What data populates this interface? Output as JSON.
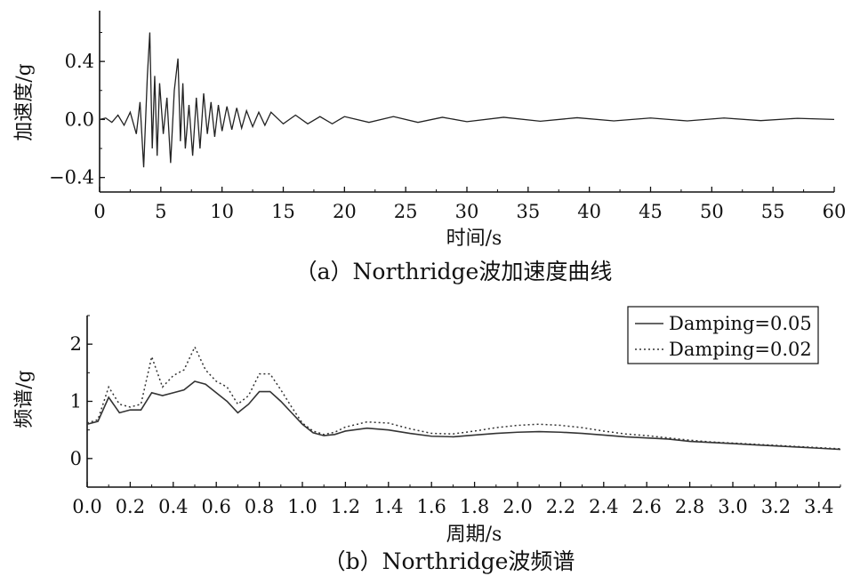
{
  "chart_data": [
    {
      "type": "line",
      "caption": "（a）Northridge波加速度曲线",
      "xlabel": "时间/s",
      "ylabel": "加速度/g",
      "xlim": [
        0,
        60
      ],
      "ylim": [
        -0.5,
        0.75
      ],
      "xticks": [
        "0",
        "5",
        "10",
        "15",
        "20",
        "25",
        "30",
        "35",
        "40",
        "45",
        "50",
        "55",
        "60"
      ],
      "yticks": [
        "-0.4",
        "0.0",
        "0.4"
      ],
      "ytick_values": [
        -0.4,
        0.0,
        0.4
      ],
      "grid": false,
      "series": [
        {
          "x": [
            0,
            0.5,
            1.0,
            1.5,
            2.0,
            2.5,
            3.0,
            3.3,
            3.6,
            3.9,
            4.1,
            4.3,
            4.5,
            4.7,
            4.9,
            5.2,
            5.5,
            5.8,
            6.1,
            6.4,
            6.6,
            6.8,
            7.0,
            7.3,
            7.6,
            7.9,
            8.2,
            8.5,
            8.8,
            9.1,
            9.4,
            9.7,
            10.0,
            10.4,
            10.8,
            11.2,
            11.6,
            12.0,
            12.5,
            13.0,
            13.5,
            14.0,
            15.0,
            16.0,
            17.0,
            18.0,
            19.0,
            20.0,
            22.0,
            24.0,
            26.0,
            28.0,
            30.0,
            33.0,
            36.0,
            39.0,
            42.0,
            45.0,
            48.0,
            51.0,
            54.0,
            57.0,
            60.0
          ],
          "y": [
            0,
            0.01,
            -0.02,
            0.03,
            -0.04,
            0.05,
            -0.1,
            0.12,
            -0.33,
            0.3,
            0.6,
            -0.2,
            0.3,
            -0.25,
            0.25,
            -0.1,
            0.15,
            -0.3,
            0.2,
            0.42,
            -0.15,
            0.25,
            -0.2,
            0.1,
            -0.25,
            0.15,
            -0.2,
            0.18,
            -0.1,
            0.12,
            -0.12,
            0.1,
            -0.08,
            0.09,
            -0.07,
            0.08,
            -0.06,
            0.06,
            -0.05,
            0.05,
            -0.04,
            0.05,
            -0.03,
            0.03,
            -0.03,
            0.02,
            -0.03,
            0.02,
            -0.02,
            0.02,
            -0.02,
            0.015,
            -0.015,
            0.015,
            -0.012,
            0.012,
            -0.01,
            0.01,
            -0.01,
            0.01,
            -0.008,
            0.008,
            0
          ]
        }
      ]
    },
    {
      "type": "line",
      "caption": "（b）Northridge波频谱",
      "xlabel": "周期/s",
      "ylabel": "频谱/g",
      "xlim": [
        0,
        3.5
      ],
      "ylim": [
        -0.5,
        2.5
      ],
      "xticks": [
        "0.0",
        "0.2",
        "0.4",
        "0.6",
        "0.8",
        "1.0",
        "1.2",
        "1.4",
        "1.6",
        "1.8",
        "2.0",
        "2.2",
        "2.4",
        "2.6",
        "2.8",
        "3.0",
        "3.2",
        "3.4"
      ],
      "yticks": [
        "0",
        "1",
        "2"
      ],
      "ytick_values": [
        0,
        1,
        2
      ],
      "grid": false,
      "legend_position": "top-right",
      "series": [
        {
          "name": "Damping=0.05",
          "style": "solid",
          "x": [
            0.0,
            0.05,
            0.1,
            0.15,
            0.2,
            0.25,
            0.3,
            0.35,
            0.4,
            0.45,
            0.5,
            0.55,
            0.6,
            0.65,
            0.7,
            0.75,
            0.8,
            0.85,
            0.9,
            0.95,
            1.0,
            1.05,
            1.1,
            1.15,
            1.2,
            1.3,
            1.4,
            1.5,
            1.6,
            1.7,
            1.8,
            1.9,
            2.0,
            2.1,
            2.2,
            2.3,
            2.4,
            2.5,
            2.6,
            2.7,
            2.8,
            2.9,
            3.0,
            3.1,
            3.2,
            3.3,
            3.4,
            3.5
          ],
          "y": [
            0.6,
            0.65,
            1.07,
            0.8,
            0.85,
            0.85,
            1.15,
            1.1,
            1.15,
            1.2,
            1.35,
            1.3,
            1.15,
            1.0,
            0.8,
            0.95,
            1.17,
            1.17,
            1.0,
            0.8,
            0.6,
            0.45,
            0.4,
            0.42,
            0.48,
            0.53,
            0.5,
            0.44,
            0.39,
            0.38,
            0.41,
            0.44,
            0.46,
            0.47,
            0.46,
            0.44,
            0.41,
            0.38,
            0.36,
            0.34,
            0.3,
            0.28,
            0.26,
            0.24,
            0.22,
            0.2,
            0.18,
            0.16
          ]
        },
        {
          "name": "Damping=0.02",
          "style": "dotted",
          "x": [
            0.0,
            0.05,
            0.1,
            0.15,
            0.2,
            0.25,
            0.3,
            0.35,
            0.4,
            0.45,
            0.5,
            0.55,
            0.6,
            0.65,
            0.7,
            0.75,
            0.8,
            0.85,
            0.9,
            0.95,
            1.0,
            1.05,
            1.1,
            1.15,
            1.2,
            1.3,
            1.4,
            1.5,
            1.6,
            1.7,
            1.8,
            1.9,
            2.0,
            2.1,
            2.2,
            2.3,
            2.4,
            2.5,
            2.6,
            2.7,
            2.8,
            2.9,
            3.0,
            3.1,
            3.2,
            3.3,
            3.4,
            3.5
          ],
          "y": [
            0.62,
            0.68,
            1.25,
            0.95,
            0.9,
            0.95,
            1.78,
            1.25,
            1.45,
            1.55,
            1.95,
            1.55,
            1.35,
            1.25,
            0.95,
            1.1,
            1.48,
            1.48,
            1.2,
            0.9,
            0.62,
            0.48,
            0.42,
            0.46,
            0.55,
            0.64,
            0.62,
            0.52,
            0.44,
            0.43,
            0.48,
            0.54,
            0.58,
            0.6,
            0.58,
            0.54,
            0.48,
            0.43,
            0.4,
            0.36,
            0.32,
            0.29,
            0.27,
            0.25,
            0.23,
            0.21,
            0.19,
            0.17
          ]
        }
      ]
    }
  ]
}
